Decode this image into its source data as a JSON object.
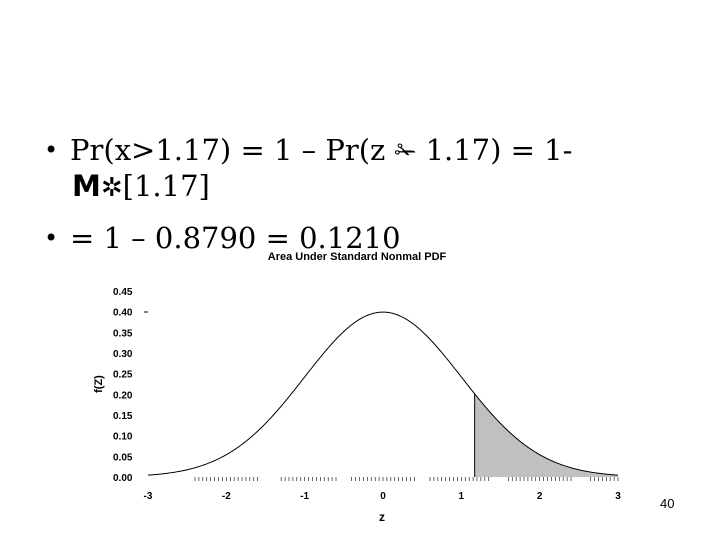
{
  "slide": {
    "line1_text": "Pr(x>1.17) = 1 – Pr(z",
    "line1_symbol": "✁",
    "line1_tail": "1.17) = 1-",
    "line2_symbol1": "M",
    "line2_symbol2": "✲",
    "line2_text": "[1.17]",
    "line3_text": "= 1 – 0.8790 = 0.1210",
    "bullet": "•",
    "page_number": "40"
  },
  "chart_data": {
    "type": "area",
    "title": "Area Under Standard Nonmal PDF",
    "xlabel": "z",
    "ylabel": "f(Z)",
    "xlim": [
      -3,
      3
    ],
    "ylim": [
      0,
      0.45
    ],
    "x_ticks": [
      "-3",
      "-2",
      "-1",
      "0",
      "1",
      "2",
      "3"
    ],
    "y_ticks": [
      "0.45",
      "0.40",
      "0.35",
      "0.30",
      "0.25",
      "0.20",
      "0.15",
      "0.10",
      "0.05",
      "0.00"
    ],
    "series": [
      {
        "function": "standard normal pdf",
        "mean": 0,
        "sd": 1
      }
    ],
    "shaded_region": {
      "from": 1.17,
      "to": 3,
      "color": "#c0c0c0"
    }
  }
}
